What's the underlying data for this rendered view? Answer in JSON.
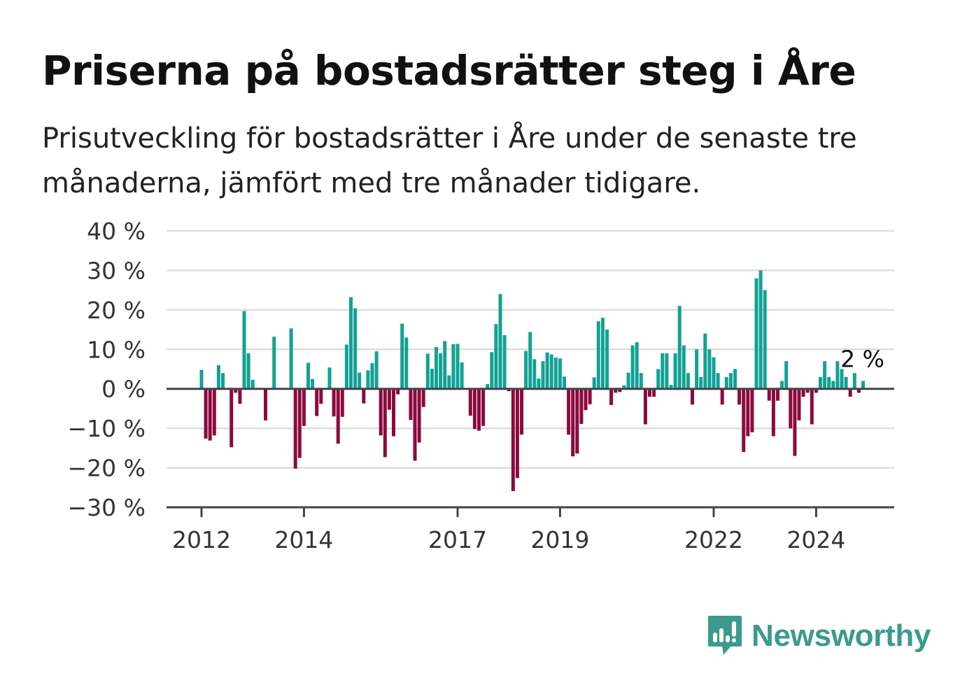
{
  "title": "Priserna på bostadsrätter steg i Åre",
  "subtitle": "Prisutveckling för bostadsrätter i Åre under de senaste tre månaderna, jämfört med tre månader tidigare.",
  "brand": {
    "name": "Newsworthy",
    "color": "#3b9a8c"
  },
  "colors": {
    "positive": "#12a293",
    "negative": "#8b0a3c",
    "grid": "#dddddd",
    "axis": "#444444"
  },
  "chart_data": {
    "type": "bar",
    "title": "Priserna på bostadsrätter steg i Åre",
    "subtitle": "Prisutveckling för bostadsrätter i Åre under de senaste tre månaderna, jämfört med tre månader tidigare.",
    "unit": "%",
    "ylim": [
      -30,
      40
    ],
    "yticks": [
      40,
      30,
      20,
      10,
      0,
      -10,
      -20,
      -30
    ],
    "ytick_labels": [
      "40 %",
      "30 %",
      "20 %",
      "10 %",
      "0 %",
      "−10 %",
      "−20 %",
      "−30 %"
    ],
    "grid": true,
    "x_start": "2012-01",
    "xticks": [
      "2012",
      "2014",
      "2017",
      "2019",
      "2022",
      "2024"
    ],
    "last_value_label": "2 %",
    "values": [
      4.8,
      -12.6,
      -13.1,
      -11.8,
      6.0,
      4.0,
      0,
      -14.8,
      -1.0,
      -3.8,
      19.7,
      9.0,
      2.3,
      0,
      0,
      -8.0,
      0,
      13.2,
      0,
      0,
      0,
      15.3,
      -20.2,
      -17.5,
      -9.4,
      6.6,
      2.5,
      -6.9,
      -3.8,
      0,
      5.4,
      -7.0,
      -13.9,
      -7.1,
      11.2,
      23.2,
      20.4,
      4.1,
      -3.7,
      4.7,
      6.5,
      9.5,
      -11.8,
      -17.3,
      -5.3,
      -12.0,
      -1.4,
      16.5,
      13.0,
      -7.9,
      -18.2,
      -13.6,
      -4.6,
      8.9,
      5.1,
      10.6,
      9.0,
      12.1,
      3.4,
      11.3,
      11.4,
      6.7,
      0,
      -6.8,
      -10.2,
      -10.6,
      -9.4,
      1.2,
      9.3,
      16.4,
      24.0,
      13.6,
      -0.6,
      -25.9,
      -22.6,
      -11.6,
      9.6,
      14.4,
      7.5,
      2.6,
      7.0,
      9.2,
      8.7,
      7.9,
      7.7,
      3.1,
      -11.6,
      -17.1,
      -16.4,
      -8.9,
      -5.4,
      -3.9,
      2.9,
      17.1,
      18.0,
      15.0,
      -4.1,
      -1.0,
      -0.8,
      0.9,
      4.1,
      11.0,
      11.8,
      4.0,
      -9.0,
      -2.0,
      -2.0,
      5.0,
      9.0,
      9.0,
      1.0,
      9.0,
      21.0,
      11.0,
      4.0,
      -4.0,
      10.0,
      3.0,
      14.0,
      10.0,
      8.0,
      4.0,
      -4.0,
      3.0,
      4.0,
      5.0,
      -4.0,
      -16.0,
      -12.0,
      -11.0,
      28.0,
      30.0,
      25.0,
      -3.0,
      -12.0,
      -3.0,
      2.0,
      7.0,
      -10.0,
      -17.0,
      -8.0,
      -2.0,
      -1.0,
      -9.0,
      -1.0,
      3.0,
      7.0,
      3.0,
      2.0,
      7.0,
      5.0,
      3.0,
      -2.0,
      4.0,
      -1.0,
      2.0
    ]
  }
}
